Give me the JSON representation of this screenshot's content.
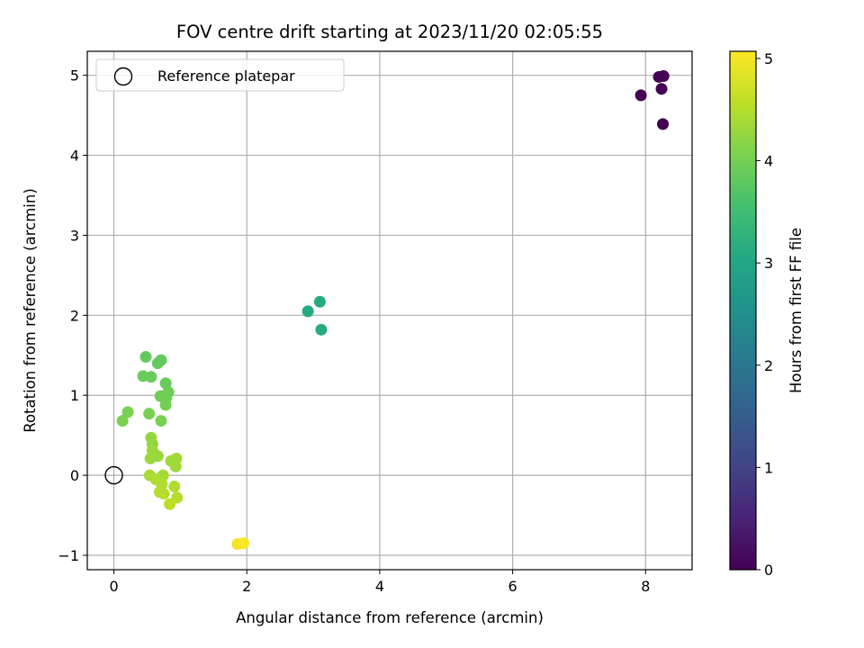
{
  "chart_data": {
    "type": "scatter",
    "title": "FOV centre drift starting at 2023/11/20 02:05:55",
    "xlabel": "Angular distance from reference (arcmin)",
    "ylabel": "Rotation from reference (arcmin)",
    "xlim": [
      -0.4,
      8.7
    ],
    "ylim": [
      -1.18,
      5.3
    ],
    "xticks": [
      0,
      2,
      4,
      6,
      8
    ],
    "yticks": [
      -1,
      0,
      1,
      2,
      3,
      4,
      5
    ],
    "grid": true,
    "legend": {
      "entries": [
        "Reference platepar"
      ],
      "placement": "upper-left"
    },
    "reference_point": {
      "x": 0,
      "y": 0,
      "marker": "open circle",
      "color": "#000000"
    },
    "colorbar": {
      "label": "Hours from first FF file",
      "colormap": "viridis",
      "range": [
        0,
        5.07
      ],
      "ticks": [
        0,
        1,
        2,
        3,
        4,
        5
      ]
    },
    "points": [
      {
        "x": 7.93,
        "y": 4.75,
        "hours": 0.0
      },
      {
        "x": 8.2,
        "y": 4.98,
        "hours": 0.0
      },
      {
        "x": 8.27,
        "y": 4.99,
        "hours": 0.0
      },
      {
        "x": 8.24,
        "y": 4.83,
        "hours": 0.0
      },
      {
        "x": 8.26,
        "y": 4.39,
        "hours": 0.0
      },
      {
        "x": 2.92,
        "y": 2.05,
        "hours": 3.1
      },
      {
        "x": 3.1,
        "y": 2.17,
        "hours": 3.1
      },
      {
        "x": 3.12,
        "y": 1.82,
        "hours": 3.1
      },
      {
        "x": 0.48,
        "y": 1.48,
        "hours": 3.85
      },
      {
        "x": 0.71,
        "y": 1.44,
        "hours": 3.85
      },
      {
        "x": 0.66,
        "y": 1.4,
        "hours": 3.85
      },
      {
        "x": 0.44,
        "y": 1.24,
        "hours": 3.9
      },
      {
        "x": 0.56,
        "y": 1.23,
        "hours": 3.9
      },
      {
        "x": 0.78,
        "y": 1.15,
        "hours": 3.9
      },
      {
        "x": 0.82,
        "y": 1.04,
        "hours": 3.95
      },
      {
        "x": 0.7,
        "y": 0.99,
        "hours": 3.95
      },
      {
        "x": 0.79,
        "y": 0.97,
        "hours": 3.95
      },
      {
        "x": 0.78,
        "y": 0.88,
        "hours": 4.0
      },
      {
        "x": 0.21,
        "y": 0.79,
        "hours": 4.05
      },
      {
        "x": 0.53,
        "y": 0.77,
        "hours": 4.05
      },
      {
        "x": 0.13,
        "y": 0.68,
        "hours": 4.05
      },
      {
        "x": 0.71,
        "y": 0.68,
        "hours": 4.05
      },
      {
        "x": 0.56,
        "y": 0.47,
        "hours": 4.25
      },
      {
        "x": 0.58,
        "y": 0.39,
        "hours": 4.25
      },
      {
        "x": 0.58,
        "y": 0.31,
        "hours": 4.3
      },
      {
        "x": 0.66,
        "y": 0.24,
        "hours": 4.3
      },
      {
        "x": 0.55,
        "y": 0.21,
        "hours": 4.3
      },
      {
        "x": 0.94,
        "y": 0.21,
        "hours": 4.35
      },
      {
        "x": 0.86,
        "y": 0.18,
        "hours": 4.35
      },
      {
        "x": 0.93,
        "y": 0.11,
        "hours": 4.35
      },
      {
        "x": 0.54,
        "y": 0.0,
        "hours": 4.4
      },
      {
        "x": 0.74,
        "y": 0.0,
        "hours": 4.4
      },
      {
        "x": 0.63,
        "y": -0.05,
        "hours": 4.45
      },
      {
        "x": 0.72,
        "y": -0.11,
        "hours": 4.45
      },
      {
        "x": 0.91,
        "y": -0.14,
        "hours": 4.45
      },
      {
        "x": 0.69,
        "y": -0.21,
        "hours": 4.5
      },
      {
        "x": 0.75,
        "y": -0.23,
        "hours": 4.5
      },
      {
        "x": 0.95,
        "y": -0.28,
        "hours": 4.5
      },
      {
        "x": 0.84,
        "y": -0.36,
        "hours": 4.55
      },
      {
        "x": 1.86,
        "y": -0.86,
        "hours": 5.0
      },
      {
        "x": 1.95,
        "y": -0.85,
        "hours": 5.05
      }
    ]
  }
}
